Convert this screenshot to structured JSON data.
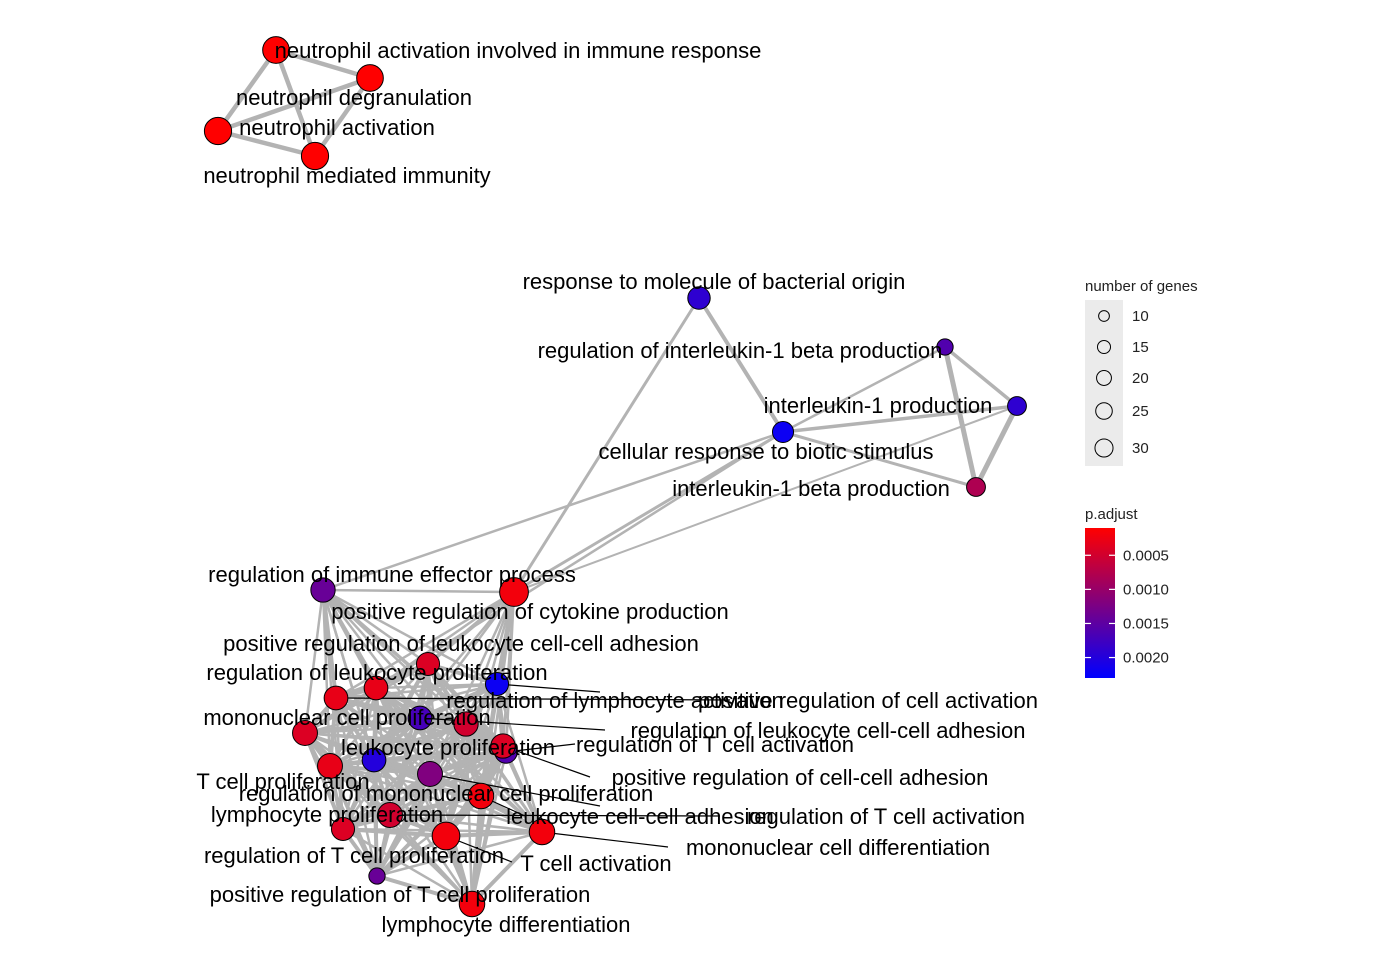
{
  "nodes": [
    {
      "id": "neutrophil-activation-involved",
      "label": "neutrophil activation involved in immune response",
      "genes": 24,
      "p_adjust": 5e-05
    },
    {
      "id": "neutrophil-degranulation",
      "label": "neutrophil degranulation",
      "genes": 24,
      "p_adjust": 5e-05
    },
    {
      "id": "neutrophil-activation",
      "label": "neutrophil activation",
      "genes": 25,
      "p_adjust": 5e-05
    },
    {
      "id": "neutrophil-mediated-immunity",
      "label": "neutrophil mediated immunity",
      "genes": 25,
      "p_adjust": 5e-05
    },
    {
      "id": "response-bacterial",
      "label": "response to molecule of bacterial origin",
      "genes": 17,
      "p_adjust": 0.0019
    },
    {
      "id": "reg-il1b-production",
      "label": "regulation of interleukin-1 beta production",
      "genes": 9,
      "p_adjust": 0.0016
    },
    {
      "id": "il1-production",
      "label": "interleukin-1 production",
      "genes": 12,
      "p_adjust": 0.0019
    },
    {
      "id": "cellular-response-biotic",
      "label": "cellular response to biotic stimulus",
      "genes": 15,
      "p_adjust": 0.0022
    },
    {
      "id": "il1b-production",
      "label": "interleukin-1 beta production",
      "genes": 12,
      "p_adjust": 0.0008
    },
    {
      "id": "reg-immune-effector",
      "label": "regulation of immune effector process",
      "genes": 20,
      "p_adjust": 0.0014
    },
    {
      "id": "pos-reg-cytokine",
      "label": "positive regulation of cytokine production",
      "genes": 28,
      "p_adjust": 0.0002
    },
    {
      "id": "pos-reg-leuk-adhesion",
      "label": "positive regulation of leukocyte cell-cell adhesion",
      "genes": 18,
      "p_adjust": 0.0004
    },
    {
      "id": "reg-leuk-prolif",
      "label": "regulation of leukocyte proliferation",
      "genes": 19,
      "p_adjust": 0.0003
    },
    {
      "id": "reg-lymph-act",
      "label": "regulation of lymphocyte activation",
      "genes": 18,
      "p_adjust": 0.0022
    },
    {
      "id": "pos-reg-cell-act",
      "label": "positive regulation of cell activation",
      "genes": 19,
      "p_adjust": 0.0003
    },
    {
      "id": "mononuclear-prolif",
      "label": "mononuclear cell proliferation",
      "genes": 21,
      "p_adjust": 0.0004
    },
    {
      "id": "reg-leuk-adhesion",
      "label": "regulation of leukocyte cell-cell adhesion",
      "genes": 19,
      "p_adjust": 0.0017
    },
    {
      "id": "leukocyte-prolif",
      "label": "leukocyte proliferation",
      "genes": 20,
      "p_adjust": 0.0005
    },
    {
      "id": "reg-tcell-act",
      "label": "regulation of T cell activation",
      "genes": 17,
      "p_adjust": 0.0016
    },
    {
      "id": "tcell-prolif",
      "label": "T cell proliferation",
      "genes": 19,
      "p_adjust": 0.002
    },
    {
      "id": "pos-reg-cc-adhesion",
      "label": "positive regulation of cell-cell adhesion",
      "genes": 20,
      "p_adjust": 0.0004
    },
    {
      "id": "reg-mono-prolif",
      "label": "regulation of mononuclear cell proliferation",
      "genes": 21,
      "p_adjust": 0.0012
    },
    {
      "id": "lymphocyte-prolif",
      "label": "lymphocyte proliferation",
      "genes": 21,
      "p_adjust": 0.0003
    },
    {
      "id": "leuk-cc-adhesion",
      "label": "leukocyte cell-cell adhesion",
      "genes": 22,
      "p_adjust": 0.0002
    },
    {
      "id": "reg-tcell-act-2",
      "label": "regulation of T cell activation",
      "genes": 21,
      "p_adjust": 0.0005
    },
    {
      "id": "reg-tcell-prolif",
      "label": "regulation of T cell proliferation",
      "genes": 18,
      "p_adjust": 0.0004
    },
    {
      "id": "tcell-activation",
      "label": "T cell activation",
      "genes": 26,
      "p_adjust": 0.0002
    },
    {
      "id": "mono-differentiation",
      "label": "mononuclear cell differentiation",
      "genes": 22,
      "p_adjust": 0.0002
    },
    {
      "id": "pos-reg-tcell-prolif",
      "label": "positive regulation of T cell proliferation",
      "genes": 9,
      "p_adjust": 0.0014
    },
    {
      "id": "lymph-differentiation",
      "label": "lymphocyte differentiation",
      "genes": 22,
      "p_adjust": 0.0002
    }
  ],
  "legend": {
    "size_title": "number of genes",
    "size_breaks": [
      {
        "value": 10,
        "label": "10"
      },
      {
        "value": 15,
        "label": "15"
      },
      {
        "value": 20,
        "label": "20"
      },
      {
        "value": 25,
        "label": "25"
      },
      {
        "value": 30,
        "label": "30"
      }
    ],
    "color_title": "p.adjust",
    "color_breaks": [
      {
        "value": 0.0005,
        "label": "0.0005"
      },
      {
        "value": 0.001,
        "label": "0.0010"
      },
      {
        "value": 0.0015,
        "label": "0.0015"
      },
      {
        "value": 0.002,
        "label": "0.0020"
      }
    ],
    "color_low": "#ff0000",
    "color_high": "#0000ff",
    "color_range": [
      0.0001,
      0.0023
    ]
  },
  "colors": {
    "edge": "#b3b3b3",
    "node_stroke": "#000000",
    "label": "#000000",
    "background": "#ffffff",
    "legend_panel": "#ebebeb"
  }
}
